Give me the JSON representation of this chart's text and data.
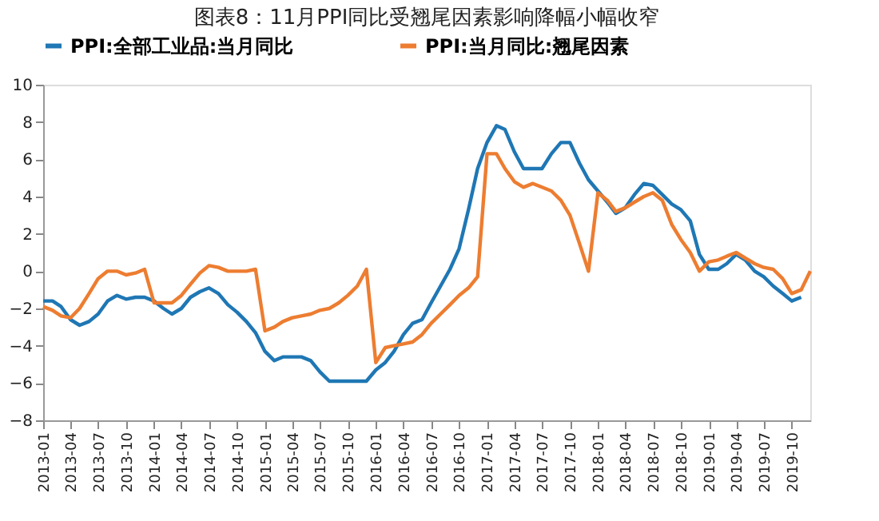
{
  "chart_data": {
    "type": "line",
    "title": "图表8：11月PPI同比受翘尾因素影响降幅小幅收窄",
    "x": [
      "2013-01",
      "2013-02",
      "2013-03",
      "2013-04",
      "2013-05",
      "2013-06",
      "2013-07",
      "2013-08",
      "2013-09",
      "2013-10",
      "2013-11",
      "2013-12",
      "2014-01",
      "2014-02",
      "2014-03",
      "2014-04",
      "2014-05",
      "2014-06",
      "2014-07",
      "2014-08",
      "2014-09",
      "2014-10",
      "2014-11",
      "2014-12",
      "2015-01",
      "2015-02",
      "2015-03",
      "2015-04",
      "2015-05",
      "2015-06",
      "2015-07",
      "2015-08",
      "2015-09",
      "2015-10",
      "2015-11",
      "2015-12",
      "2016-01",
      "2016-02",
      "2016-03",
      "2016-04",
      "2016-05",
      "2016-06",
      "2016-07",
      "2016-08",
      "2016-09",
      "2016-10",
      "2016-11",
      "2016-12",
      "2017-01",
      "2017-02",
      "2017-03",
      "2017-04",
      "2017-05",
      "2017-06",
      "2017-07",
      "2017-08",
      "2017-09",
      "2017-10",
      "2017-11",
      "2017-12",
      "2018-01",
      "2018-02",
      "2018-03",
      "2018-04",
      "2018-05",
      "2018-06",
      "2018-07",
      "2018-08",
      "2018-09",
      "2018-10",
      "2018-11",
      "2018-12",
      "2019-01",
      "2019-02",
      "2019-03",
      "2019-04",
      "2019-05",
      "2019-06",
      "2019-07",
      "2019-08",
      "2019-09",
      "2019-10",
      "2019-11",
      "2019-12"
    ],
    "series": [
      {
        "name": "PPI:全部工业品:当月同比",
        "color": "#1f77b4",
        "values": [
          -1.6,
          -1.6,
          -1.9,
          -2.6,
          -2.9,
          -2.7,
          -2.3,
          -1.6,
          -1.3,
          -1.5,
          -1.4,
          -1.4,
          -1.6,
          -2.0,
          -2.3,
          -2.0,
          -1.4,
          -1.1,
          -0.9,
          -1.2,
          -1.8,
          -2.2,
          -2.7,
          -3.3,
          -4.3,
          -4.8,
          -4.6,
          -4.6,
          -4.6,
          -4.8,
          -5.4,
          -5.9,
          -5.9,
          -5.9,
          -5.9,
          -5.9,
          -5.3,
          -4.9,
          -4.3,
          -3.4,
          -2.8,
          -2.6,
          -1.7,
          -0.8,
          0.1,
          1.2,
          3.3,
          5.5,
          6.9,
          7.8,
          7.6,
          6.4,
          5.5,
          5.5,
          5.5,
          6.3,
          6.9,
          6.9,
          5.8,
          4.9,
          4.3,
          3.7,
          3.1,
          3.4,
          4.1,
          4.7,
          4.6,
          4.1,
          3.6,
          3.3,
          2.7,
          0.9,
          0.1,
          0.1,
          0.4,
          0.9,
          0.6,
          0.0,
          -0.3,
          -0.8,
          -1.2,
          -1.6,
          -1.4,
          null
        ]
      },
      {
        "name": "PPI:当月同比:翘尾因素",
        "color": "#ed7d31",
        "values": [
          -1.9,
          -2.1,
          -2.4,
          -2.5,
          -2.0,
          -1.2,
          -0.4,
          0.0,
          0.0,
          -0.2,
          -0.1,
          0.1,
          -1.7,
          -1.7,
          -1.7,
          -1.3,
          -0.7,
          -0.1,
          0.3,
          0.2,
          0.0,
          0.0,
          0.0,
          0.1,
          -3.2,
          -3.0,
          -2.7,
          -2.5,
          -2.4,
          -2.3,
          -2.1,
          -2.0,
          -1.7,
          -1.3,
          -0.8,
          0.1,
          -4.9,
          -4.1,
          -4.0,
          -3.9,
          -3.8,
          -3.4,
          -2.8,
          -2.3,
          -1.8,
          -1.3,
          -0.9,
          -0.3,
          6.3,
          6.3,
          5.5,
          4.8,
          4.5,
          4.7,
          4.5,
          4.3,
          3.8,
          3.0,
          1.5,
          0.0,
          4.2,
          3.8,
          3.2,
          3.4,
          3.7,
          4.0,
          4.2,
          3.8,
          2.5,
          1.7,
          1.0,
          0.0,
          0.5,
          0.6,
          0.8,
          1.0,
          0.7,
          0.4,
          0.2,
          0.1,
          -0.4,
          -1.2,
          -1.0,
          0.0
        ]
      }
    ],
    "xlim": [
      "2013-01",
      "2019-12"
    ],
    "xticks": [
      "2013-01",
      "2013-04",
      "2013-07",
      "2013-10",
      "2014-01",
      "2014-04",
      "2014-07",
      "2014-10",
      "2015-01",
      "2015-04",
      "2015-07",
      "2015-10",
      "2016-01",
      "2016-04",
      "2016-07",
      "2016-10",
      "2017-01",
      "2017-04",
      "2017-07",
      "2017-10",
      "2018-01",
      "2018-04",
      "2018-07",
      "2018-10",
      "2019-01",
      "2019-04",
      "2019-07",
      "2019-10"
    ],
    "ylim": [
      -8,
      10
    ],
    "yticks": [
      -8,
      -6,
      -4,
      -2,
      0,
      2,
      4,
      6,
      8,
      10
    ],
    "legend": "top",
    "marker": "none",
    "line_style": "solid",
    "grid": false
  }
}
